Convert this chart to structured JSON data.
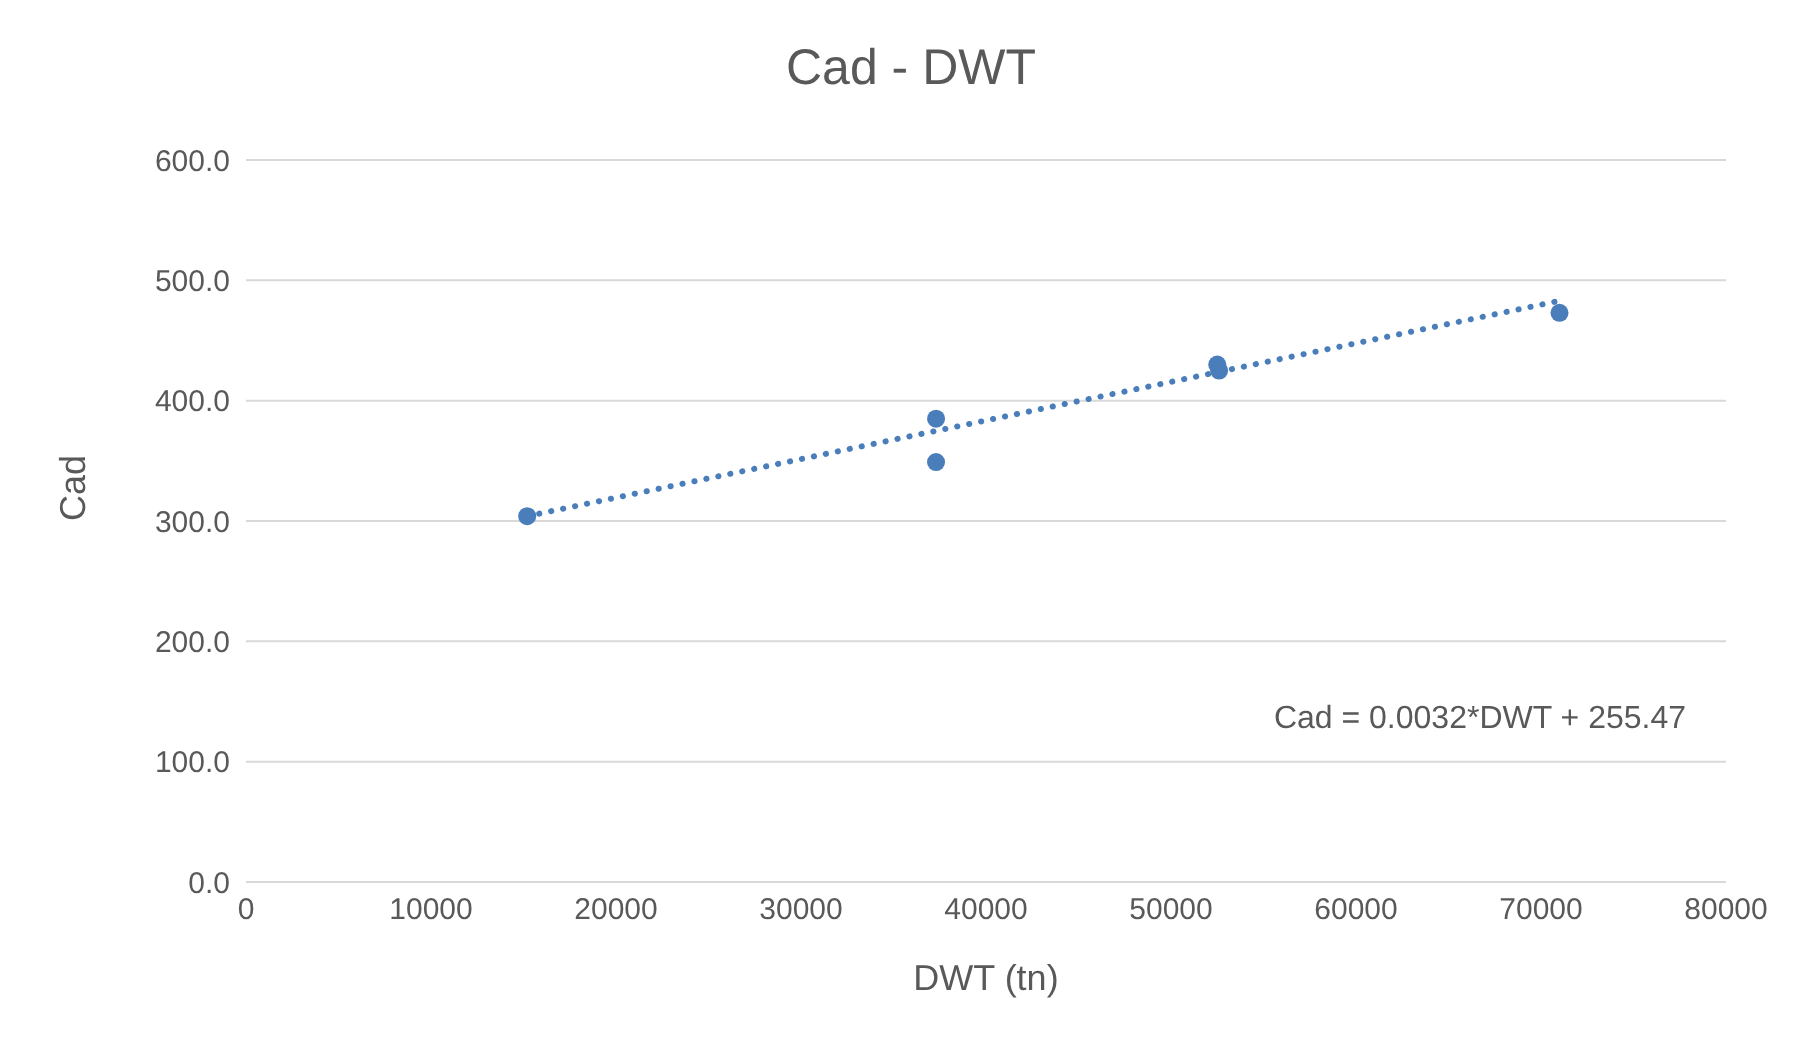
{
  "chart_data": {
    "type": "scatter",
    "title": "Cad - DWT",
    "xlabel": "DWT (tn)",
    "ylabel": "Cad",
    "annotations": [
      "Cad = 0.0032*DWT + 255.47"
    ],
    "series": [
      {
        "type": "scatter",
        "color": "#4a7ebb",
        "x": [
          15200,
          37300,
          37300,
          52500,
          52600,
          71000
        ],
        "values": [
          304,
          385,
          349,
          430,
          425,
          473
        ],
        "marker": "circle"
      },
      {
        "type": "line",
        "color": "#4a7ebb",
        "x": [
          15200,
          71000
        ],
        "values": [
          304,
          483
        ],
        "line_style": "dotted",
        "marker": "none"
      }
    ],
    "xlim": [
      0,
      80000
    ],
    "xticks": [
      0,
      10000,
      20000,
      30000,
      40000,
      50000,
      60000,
      70000,
      80000
    ],
    "ylim": [
      0,
      600
    ],
    "yticks": [
      {
        "value": 0,
        "label": "0.0"
      },
      {
        "value": 100,
        "label": "100.0"
      },
      {
        "value": 200,
        "label": "200.0"
      },
      {
        "value": 300,
        "label": "300.0"
      },
      {
        "value": 400,
        "label": "400.0"
      },
      {
        "value": 500,
        "label": "500.0"
      },
      {
        "value": 600,
        "label": "600.0"
      }
    ],
    "grid": "y",
    "legend": false
  }
}
